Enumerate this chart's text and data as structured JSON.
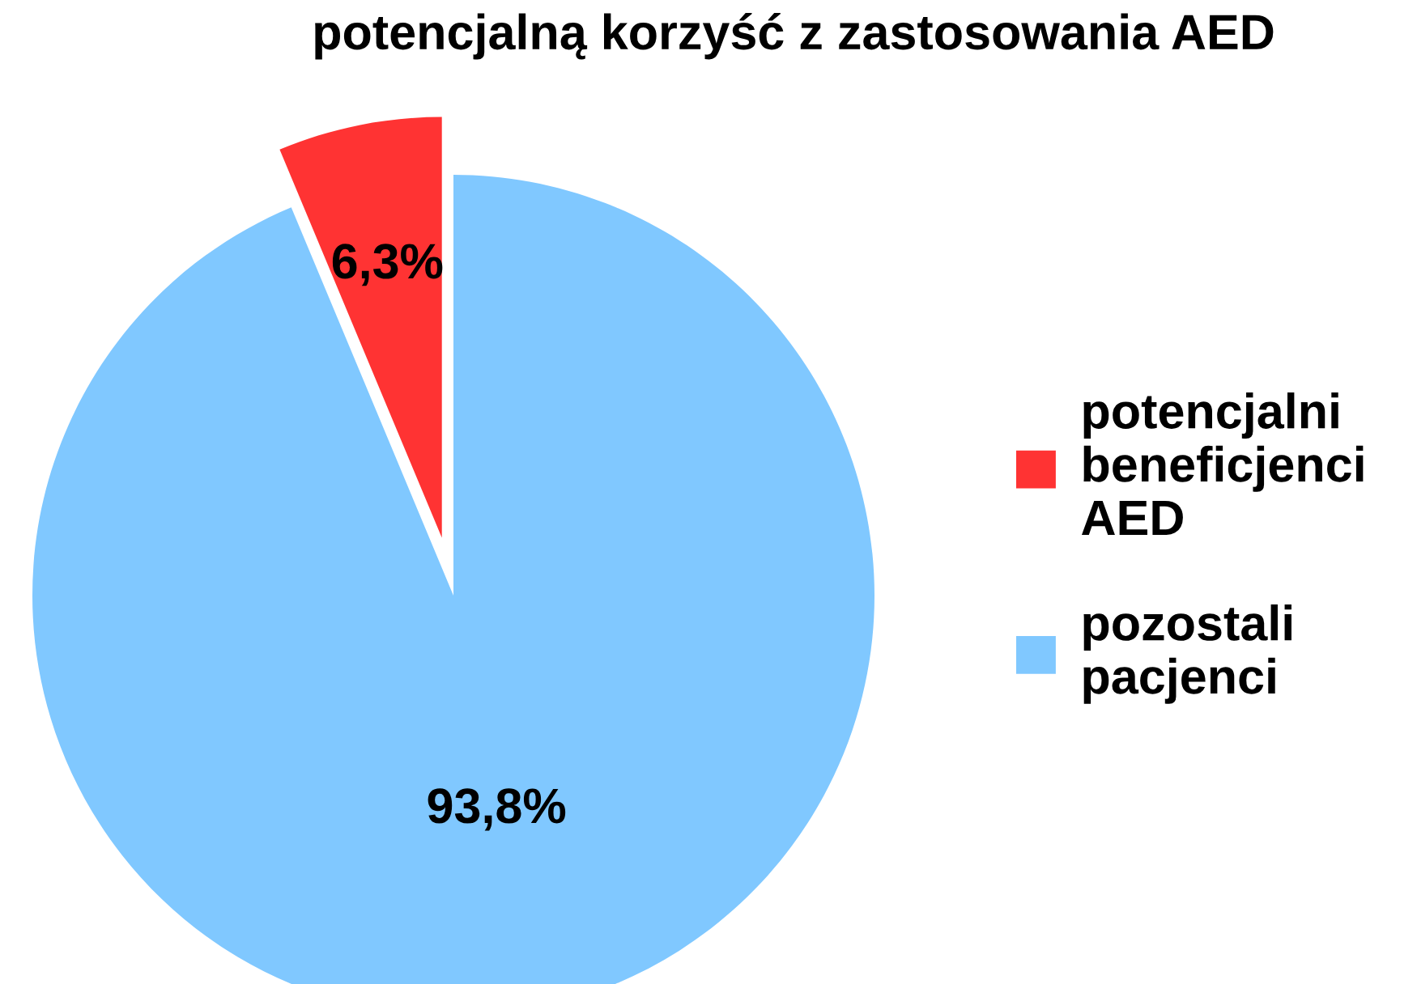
{
  "chart_data": {
    "type": "pie",
    "title": "potencjalną korzyść z zastosowania AED",
    "categories": [
      "potencjalni beneficjenci AED",
      "pozostali pacjenci"
    ],
    "values": [
      6.3,
      93.8
    ],
    "value_labels": [
      "6,3%",
      "93,8%"
    ],
    "colors": [
      "#ff3333",
      "#80c8ff"
    ],
    "legend": "right"
  }
}
